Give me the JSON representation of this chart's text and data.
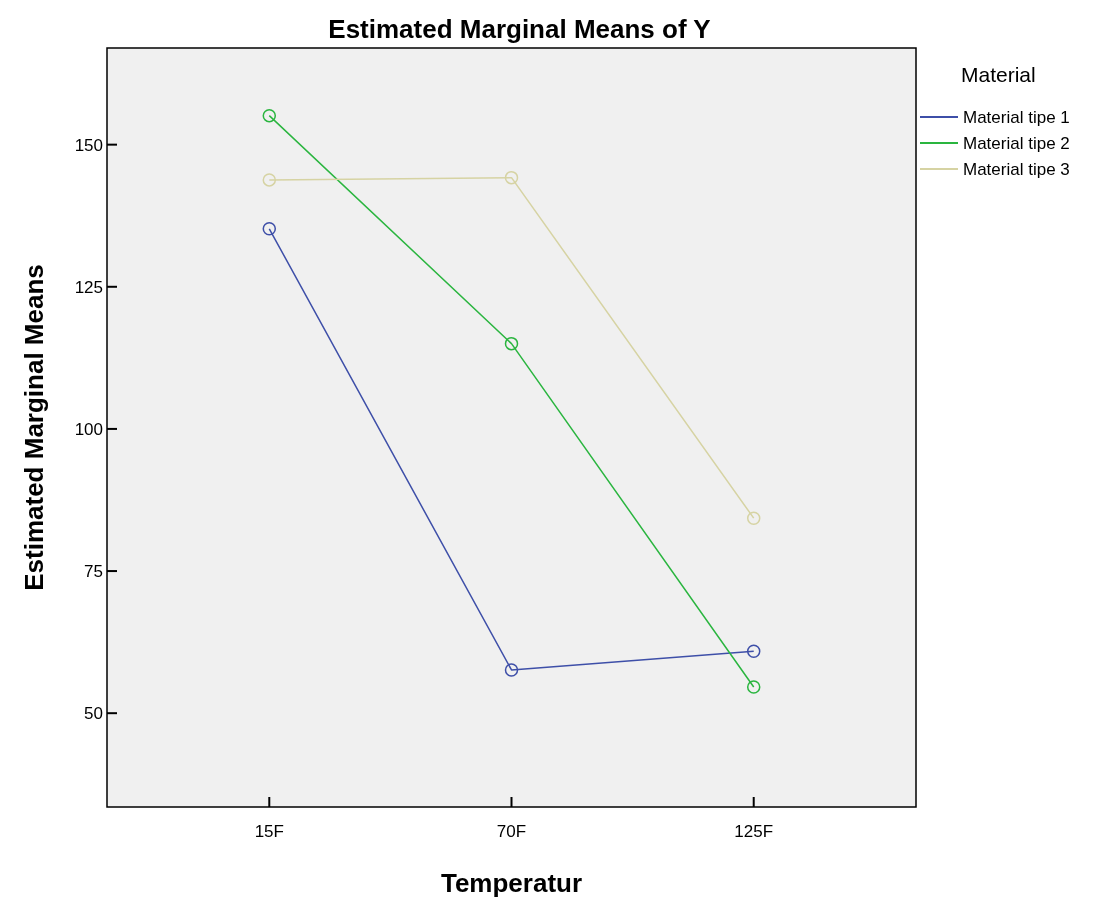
{
  "chart_data": {
    "type": "line",
    "title": "Estimated Marginal Means of Y",
    "xlabel": "Temperatur",
    "ylabel": "Estimated Marginal Means",
    "legend_title": "Material",
    "categories": [
      "15F",
      "70F",
      "125F"
    ],
    "series": [
      {
        "name": "Material tipe 1",
        "color": "#3e4fa8",
        "values": [
          135.2,
          57.6,
          60.9
        ]
      },
      {
        "name": "Material tipe 2",
        "color": "#2ab53f",
        "values": [
          155.1,
          115.0,
          54.6
        ]
      },
      {
        "name": "Material tipe 3",
        "color": "#d6d3a3",
        "values": [
          143.8,
          144.2,
          84.3
        ]
      }
    ],
    "ylim": [
      33.5,
      167
    ],
    "yticks": [
      50,
      75,
      100,
      125,
      150
    ],
    "grid": false,
    "legend": "right",
    "marker": "circle",
    "line_style": "solid"
  }
}
